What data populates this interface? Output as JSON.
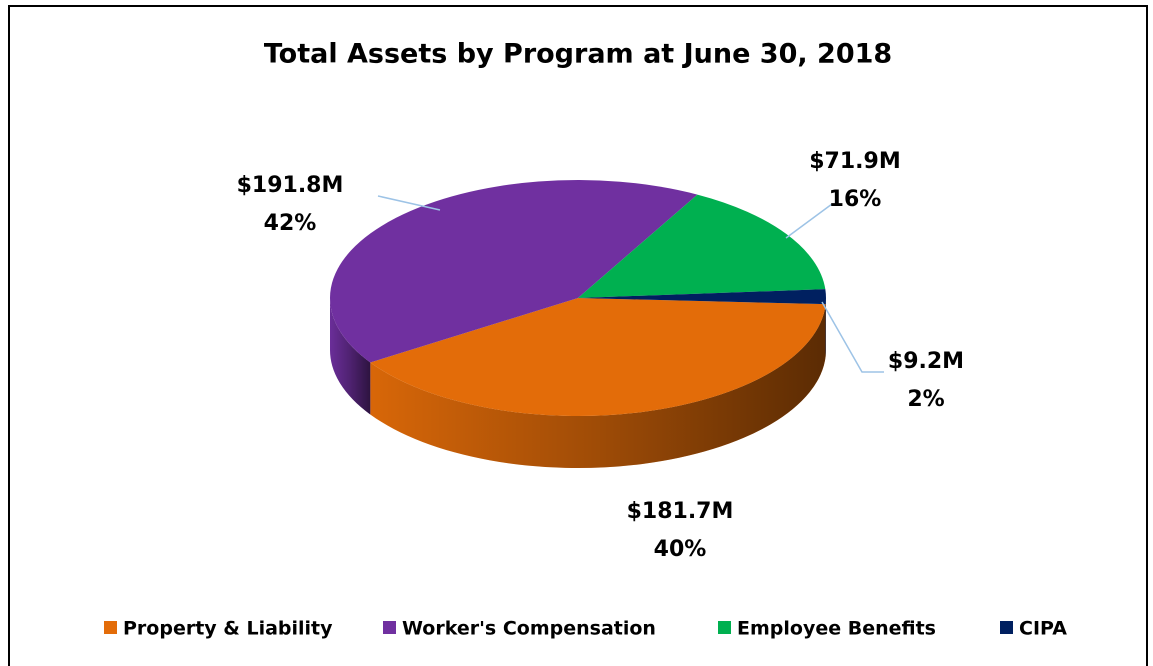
{
  "chart_data": {
    "type": "pie",
    "title": "Total Assets by Program at June 30, 2018",
    "categories": [
      "Property & Liability",
      "Worker's Compensation",
      "Employee Benefits",
      "CIPA"
    ],
    "values": [
      181.7,
      191.8,
      71.9,
      9.2
    ],
    "value_labels": [
      "$181.7M",
      "$191.8M",
      "$71.9M",
      "$9.2M"
    ],
    "percents": [
      40,
      42,
      16,
      2
    ],
    "percent_labels": [
      "40%",
      "42%",
      "16%",
      "2%"
    ],
    "colors": [
      "#e36c09",
      "#7030a0",
      "#00b050",
      "#002060"
    ],
    "legend": "bottom"
  }
}
